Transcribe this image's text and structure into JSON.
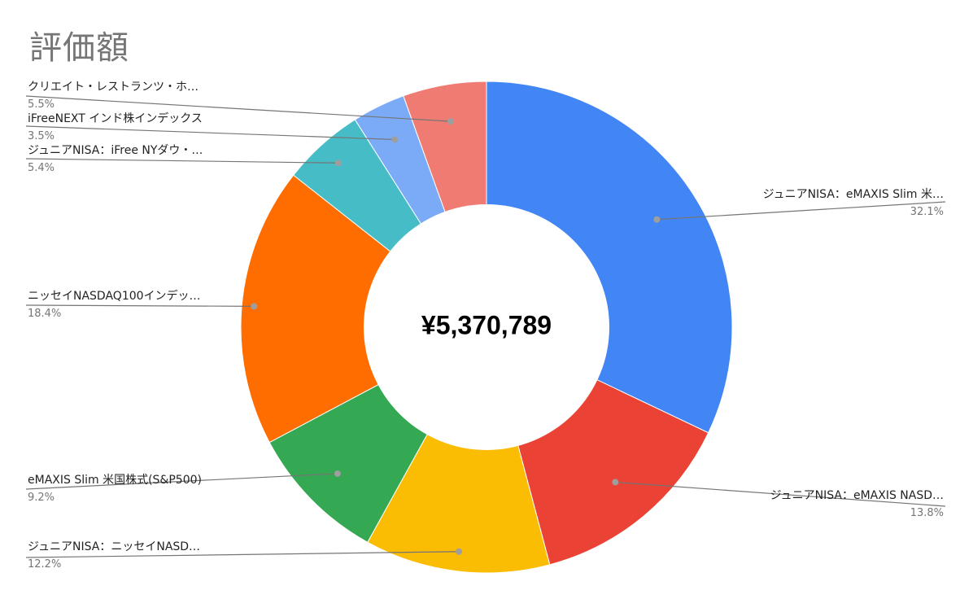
{
  "chart_data": {
    "type": "pie",
    "donut": true,
    "title": "評価額",
    "center_label": "¥5,370,789",
    "slices": [
      {
        "name": "ジュニアNISA：eMAXIS Slim 米…",
        "percent_label": "32.1%",
        "value": 32.1,
        "color": "#4285F4"
      },
      {
        "name": "ジュニアNISA：eMAXIS NASD…",
        "percent_label": "13.8%",
        "value": 13.8,
        "color": "#EA4335"
      },
      {
        "name": "ジュニアNISA：ニッセイNASD…",
        "percent_label": "12.2%",
        "value": 12.2,
        "color": "#FBBC04"
      },
      {
        "name": "eMAXIS Slim 米国株式(S&P500)",
        "percent_label": "9.2%",
        "value": 9.2,
        "color": "#34A853"
      },
      {
        "name": "ニッセイNASDAQ100インデッ…",
        "percent_label": "18.4%",
        "value": 18.4,
        "color": "#FF6D01"
      },
      {
        "name": "ジュニアNISA：iFree NYダウ・…",
        "percent_label": "5.4%",
        "value": 5.4,
        "color": "#46BDC6"
      },
      {
        "name": "iFreeNEXT インド株インデックス",
        "percent_label": "3.5%",
        "value": 3.5,
        "color": "#7BAAF7"
      },
      {
        "name": "クリエイト・レストランツ・ホ…",
        "percent_label": "5.5%",
        "value": 5.5,
        "color": "#F07B72"
      }
    ]
  }
}
